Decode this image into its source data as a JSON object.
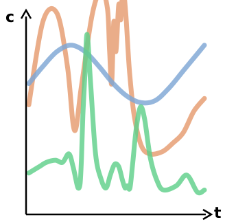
{
  "chart_data": {
    "type": "line",
    "xlabel": "t",
    "ylabel": "c",
    "grid": false,
    "legend": "none",
    "series": [
      {
        "color": "#e59b6f",
        "x": [
          0,
          20,
          40,
          55,
          65,
          75,
          90,
          103,
          112,
          115,
          118,
          121,
          124,
          128,
          131,
          134,
          138,
          141,
          144,
          150,
          160,
          172,
          190,
          205,
          220,
          235,
          250
        ],
        "y": [
          45,
          84,
          88,
          63,
          33,
          54,
          87,
          99,
          90,
          70,
          55,
          84,
          70,
          92,
          85,
          100,
          88,
          72,
          58,
          40,
          26,
          22,
          23,
          27,
          32,
          42,
          48
        ]
      },
      {
        "color": "#7ea6d4",
        "x": [
          0,
          20,
          40,
          60,
          80,
          100,
          120,
          140,
          160,
          180,
          200,
          220,
          240,
          250
        ],
        "y": [
          55,
          63,
          70,
          73,
          70,
          63,
          55,
          49,
          46,
          47,
          53,
          61,
          69,
          73
        ]
      },
      {
        "color": "#5fcf8a",
        "x": [
          0,
          15,
          25,
          38,
          48,
          57,
          63,
          67,
          70,
          73,
          75,
          77,
          80,
          83,
          88,
          95,
          103,
          110,
          116,
          122,
          128,
          133,
          137,
          140,
          144,
          148,
          153,
          159,
          165,
          173,
          183,
          192,
          210,
          225,
          240,
          250
        ],
        "y": [
          13,
          16,
          18,
          19,
          18,
          22,
          16,
          10,
          6,
          8,
          20,
          40,
          60,
          78,
          55,
          22,
          10,
          6,
          12,
          17,
          16,
          10,
          6,
          7,
          6,
          18,
          34,
          44,
          38,
          20,
          9,
          5,
          7,
          12,
          4,
          5
        ]
      }
    ]
  }
}
